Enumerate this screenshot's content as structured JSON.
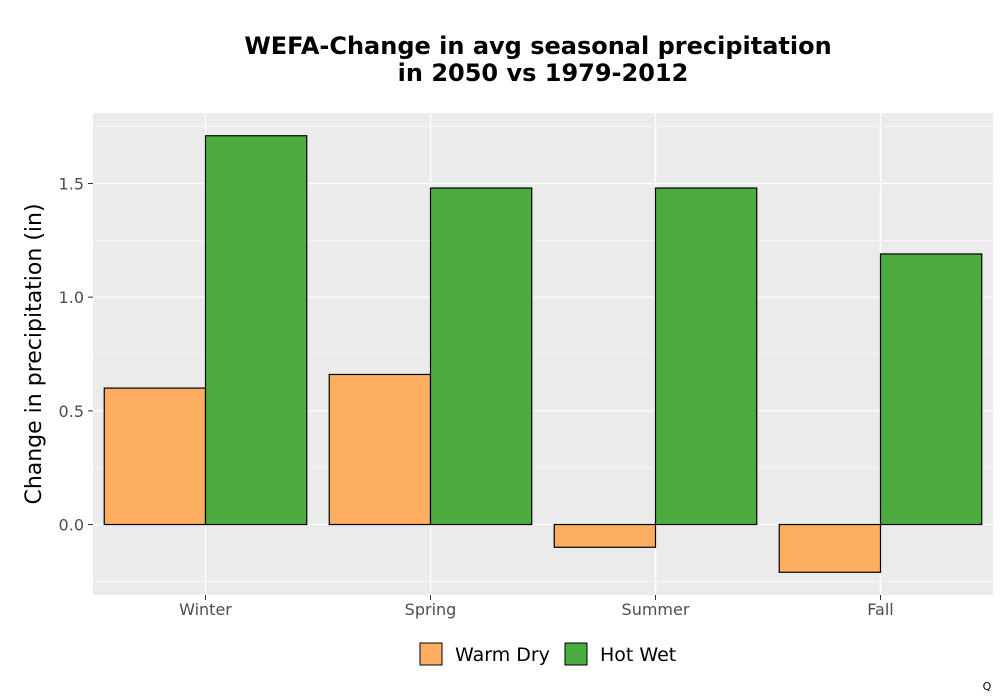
{
  "chart_data": {
    "type": "bar",
    "title_lines": [
      "WEFA-Change in avg seasonal precipitation",
      "in 2050 vs 1979-2012"
    ],
    "xlabel": "",
    "ylabel": "Change in precipitation (in)",
    "categories": [
      "Winter",
      "Spring",
      "Summer",
      "Fall"
    ],
    "series": [
      {
        "name": "Warm Dry",
        "color": "#FDAE61",
        "values": [
          0.6,
          0.66,
          -0.1,
          -0.21
        ]
      },
      {
        "name": "Hot Wet",
        "color": "#4DAC40",
        "values": [
          1.71,
          1.48,
          1.48,
          1.19
        ]
      }
    ],
    "ylim": [
      -0.31,
      1.81
    ],
    "yticks": [
      0.0,
      0.5,
      1.0,
      1.5
    ],
    "ytick_labels": [
      "0.0",
      "0.5",
      "1.0",
      "1.5"
    ],
    "grid": true,
    "legend": "bottom",
    "panel_background": "#EBEBEB"
  },
  "corner_mark": "Q"
}
